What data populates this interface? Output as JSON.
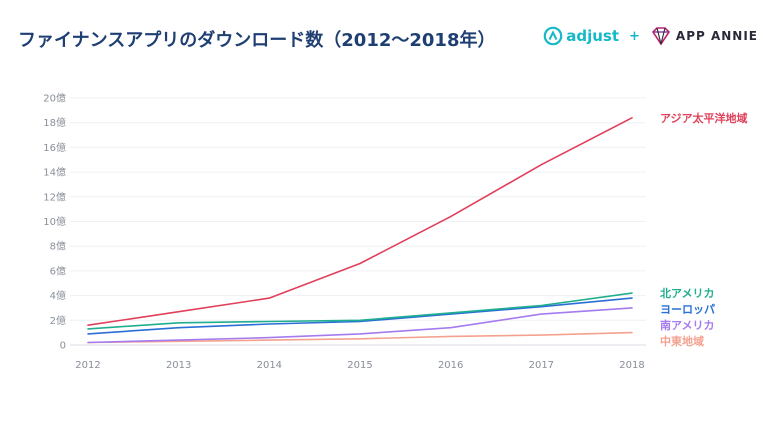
{
  "header": {
    "title": "ファイナンスアプリのダウンロード数（2012〜2018年）"
  },
  "logos": {
    "adjust_text": "adjust",
    "plus": "+",
    "appannie_text": "APP ANNIE"
  },
  "colors": {
    "title": "#1f3f73",
    "grid": "#eef0f4",
    "axis_text": "#8a8f99",
    "adjust": "#16b9c8"
  },
  "chart_data": {
    "type": "line",
    "title": "ファイナンスアプリのダウンロード数（2012〜2018年）",
    "xlabel": "",
    "ylabel": "",
    "x": [
      "2012",
      "2013",
      "2014",
      "2015",
      "2016",
      "2017",
      "2018"
    ],
    "ylim": [
      0,
      20
    ],
    "yticks": [
      0,
      2,
      4,
      6,
      8,
      10,
      12,
      14,
      16,
      18,
      20
    ],
    "ytick_labels": [
      "0",
      "2億",
      "4億",
      "6億",
      "8億",
      "10億",
      "12億",
      "14億",
      "16億",
      "18億",
      "20億"
    ],
    "grid": true,
    "legend": "end-of-line labels, right",
    "series": [
      {
        "name": "アジア太平洋地域",
        "color": "#e0405a",
        "values": [
          1.6,
          2.7,
          3.8,
          6.6,
          10.4,
          14.6,
          18.4
        ]
      },
      {
        "name": "北アメリカ",
        "color": "#1fae8e",
        "values": [
          1.3,
          1.8,
          1.9,
          2.0,
          2.6,
          3.2,
          4.2
        ]
      },
      {
        "name": "ヨーロッパ",
        "color": "#2a6fd6",
        "values": [
          0.9,
          1.4,
          1.7,
          1.9,
          2.5,
          3.1,
          3.8
        ]
      },
      {
        "name": "南アメリカ",
        "color": "#a57bef",
        "values": [
          0.2,
          0.4,
          0.6,
          0.9,
          1.4,
          2.5,
          3.0
        ]
      },
      {
        "name": "中東地域",
        "color": "#f4a28f",
        "values": [
          0.2,
          0.3,
          0.4,
          0.5,
          0.7,
          0.8,
          1.0
        ]
      }
    ]
  }
}
